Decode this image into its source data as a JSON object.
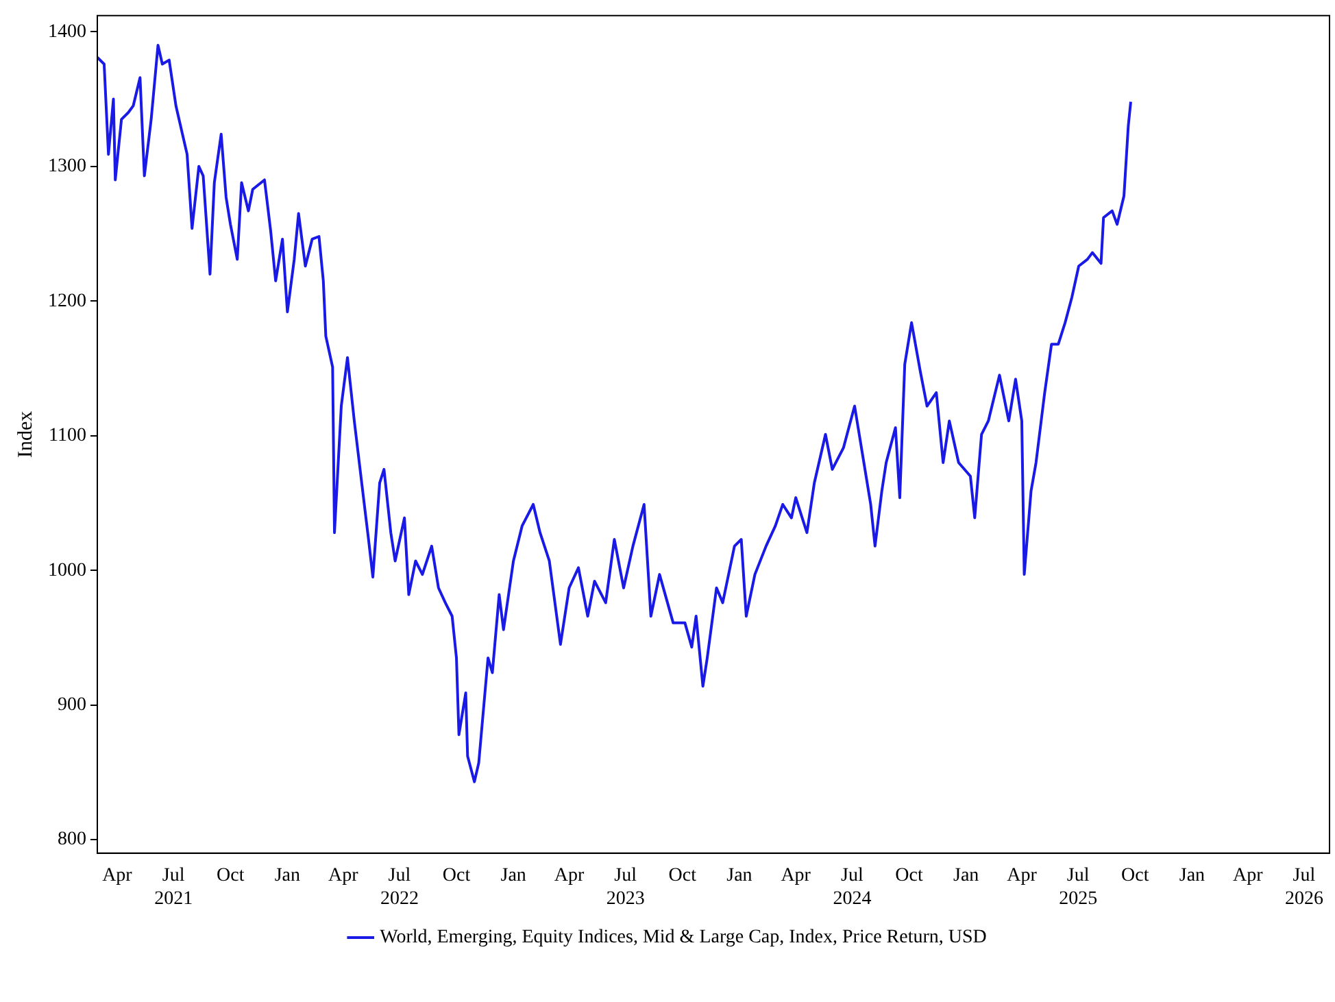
{
  "chart_data": {
    "type": "line",
    "ylabel": "Index",
    "x": [
      "2021-02-28",
      "2021-03-11",
      "2021-03-18",
      "2021-03-26",
      "2021-03-29",
      "2021-04-08",
      "2021-04-19",
      "2021-04-27",
      "2021-05-08",
      "2021-05-15",
      "2021-05-26",
      "2021-06-06",
      "2021-06-13",
      "2021-06-24",
      "2021-07-05",
      "2021-07-23",
      "2021-07-31",
      "2021-08-11",
      "2021-08-18",
      "2021-08-29",
      "2021-09-05",
      "2021-09-16",
      "2021-09-24",
      "2021-10-01",
      "2021-10-12",
      "2021-10-19",
      "2021-10-30",
      "2021-11-06",
      "2021-11-25",
      "2021-12-05",
      "2021-12-13",
      "2021-12-24",
      "2022-01-01",
      "2022-01-12",
      "2022-01-19",
      "2022-01-30",
      "2022-02-10",
      "2022-02-21",
      "2022-02-28",
      "2022-03-04",
      "2022-03-15",
      "2022-03-18",
      "2022-03-29",
      "2022-04-08",
      "2022-04-19",
      "2022-05-01",
      "2022-05-12",
      "2022-05-19",
      "2022-05-30",
      "2022-06-06",
      "2022-06-17",
      "2022-06-24",
      "2022-07-09",
      "2022-07-16",
      "2022-07-27",
      "2022-08-07",
      "2022-08-22",
      "2022-09-02",
      "2022-09-13",
      "2022-09-24",
      "2022-10-01",
      "2022-10-05",
      "2022-10-16",
      "2022-10-19",
      "2022-10-30",
      "2022-11-06",
      "2022-11-21",
      "2022-11-28",
      "2022-12-09",
      "2022-12-16",
      "2023-01-01",
      "2023-01-15",
      "2023-02-02",
      "2023-02-13",
      "2023-02-28",
      "2023-03-18",
      "2023-04-01",
      "2023-04-16",
      "2023-05-01",
      "2023-05-12",
      "2023-05-30",
      "2023-06-13",
      "2023-06-28",
      "2023-07-13",
      "2023-07-31",
      "2023-08-11",
      "2023-08-25",
      "2023-09-16",
      "2023-10-05",
      "2023-10-16",
      "2023-10-23",
      "2023-11-03",
      "2023-11-10",
      "2023-11-25",
      "2023-12-05",
      "2023-12-24",
      "2024-01-04",
      "2024-01-12",
      "2024-01-26",
      "2024-02-13",
      "2024-02-28",
      "2024-03-11",
      "2024-03-25",
      "2024-04-01",
      "2024-04-19",
      "2024-05-01",
      "2024-05-19",
      "2024-05-30",
      "2024-06-17",
      "2024-07-05",
      "2024-07-20",
      "2024-07-31",
      "2024-08-07",
      "2024-08-18",
      "2024-08-25",
      "2024-09-09",
      "2024-09-16",
      "2024-09-24",
      "2024-10-05",
      "2024-10-19",
      "2024-10-30",
      "2024-11-14",
      "2024-11-25",
      "2024-12-05",
      "2024-12-20",
      "2025-01-08",
      "2025-01-15",
      "2025-01-26",
      "2025-02-06",
      "2025-02-24",
      "2025-03-11",
      "2025-03-22",
      "2025-04-01",
      "2025-04-05",
      "2025-04-16",
      "2025-04-24",
      "2025-05-08",
      "2025-05-19",
      "2025-05-30",
      "2025-06-10",
      "2025-06-21",
      "2025-07-02",
      "2025-07-16",
      "2025-07-24",
      "2025-08-07",
      "2025-08-11",
      "2025-08-25",
      "2025-09-02",
      "2025-09-13",
      "2025-09-20",
      "2025-09-24"
    ],
    "series": [
      {
        "name": "World, Emerging, Equity Indices, Mid & Large Cap, Index, Price Return, USD",
        "color": "#1a1ae6",
        "values": [
          1381,
          1376,
          1309,
          1350,
          1290,
          1335,
          1340,
          1345,
          1366,
          1293,
          1335,
          1390,
          1376,
          1379,
          1345,
          1309,
          1254,
          1300,
          1293,
          1220,
          1288,
          1324,
          1277,
          1257,
          1231,
          1288,
          1267,
          1283,
          1290,
          1252,
          1215,
          1246,
          1192,
          1231,
          1265,
          1226,
          1246,
          1248,
          1215,
          1174,
          1151,
          1028,
          1122,
          1158,
          1111,
          1065,
          1023,
          995,
          1065,
          1075,
          1028,
          1007,
          1039,
          982,
          1007,
          997,
          1018,
          987,
          976,
          966,
          935,
          878,
          909,
          862,
          843,
          857,
          935,
          924,
          982,
          956,
          1007,
          1033,
          1049,
          1028,
          1007,
          945,
          987,
          1002,
          966,
          992,
          976,
          1023,
          987,
          1018,
          1049,
          966,
          997,
          961,
          961,
          943,
          966,
          914,
          935,
          987,
          976,
          1018,
          1023,
          966,
          997,
          1018,
          1033,
          1049,
          1039,
          1054,
          1028,
          1065,
          1101,
          1075,
          1091,
          1122,
          1080,
          1049,
          1018,
          1059,
          1080,
          1106,
          1054,
          1153,
          1184,
          1148,
          1122,
          1132,
          1080,
          1111,
          1080,
          1070,
          1039,
          1101,
          1111,
          1145,
          1111,
          1142,
          1111,
          997,
          1059,
          1080,
          1132,
          1168,
          1168,
          1184,
          1203,
          1226,
          1231,
          1236,
          1228,
          1262,
          1267,
          1257,
          1278,
          1330,
          1348
        ]
      }
    ],
    "xlim": [
      "2021-02-28",
      "2026-08-11"
    ],
    "xticks": [
      {
        "value": "2021-04-01",
        "label": "Apr"
      },
      {
        "value": "2021-07-01",
        "label": "Jul\n2021"
      },
      {
        "value": "2021-10-01",
        "label": "Oct"
      },
      {
        "value": "2022-01-01",
        "label": "Jan"
      },
      {
        "value": "2022-04-01",
        "label": "Apr"
      },
      {
        "value": "2022-07-01",
        "label": "Jul\n2022"
      },
      {
        "value": "2022-10-01",
        "label": "Oct"
      },
      {
        "value": "2023-01-01",
        "label": "Jan"
      },
      {
        "value": "2023-04-01",
        "label": "Apr"
      },
      {
        "value": "2023-07-01",
        "label": "Jul\n2023"
      },
      {
        "value": "2023-10-01",
        "label": "Oct"
      },
      {
        "value": "2024-01-01",
        "label": "Jan"
      },
      {
        "value": "2024-04-01",
        "label": "Apr"
      },
      {
        "value": "2024-07-01",
        "label": "Jul\n2024"
      },
      {
        "value": "2024-10-01",
        "label": "Oct"
      },
      {
        "value": "2025-01-01",
        "label": "Jan"
      },
      {
        "value": "2025-04-01",
        "label": "Apr"
      },
      {
        "value": "2025-07-01",
        "label": "Jul\n2025"
      },
      {
        "value": "2025-10-01",
        "label": "Oct"
      },
      {
        "value": "2026-01-01",
        "label": "Jan"
      },
      {
        "value": "2026-04-01",
        "label": "Apr"
      },
      {
        "value": "2026-07-01",
        "label": "Jul\n2026"
      }
    ],
    "ylim": [
      790,
      1412
    ],
    "yticks": [
      800,
      900,
      1000,
      1100,
      1200,
      1300,
      1400
    ],
    "grid": false,
    "legend": "bottom",
    "marker": "none",
    "line_style": "solid"
  }
}
